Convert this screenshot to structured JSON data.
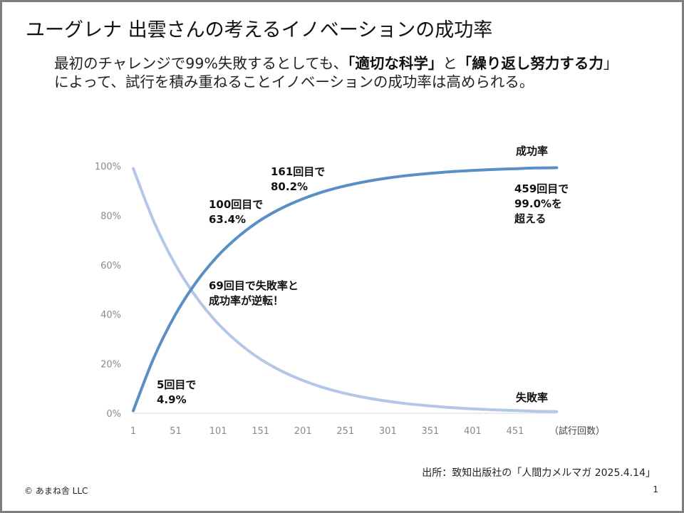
{
  "slide": {
    "title": "ユーグレナ 出雲さんの考えるイノベーションの成功率",
    "lead": {
      "part1": "最初のチャレンジで99%失敗するとしても、",
      "bold1": "「適切な科学」",
      "part2": "と",
      "bold2": "「繰り返し努力する力",
      "part3": "」によって、試行を積み重ねることイノベーションの成功率は高められる。"
    },
    "source": "出所：致知出版社の「人間力メルマガ 2025.4.14」",
    "copyright": "© あまね舎 LLC",
    "page_number": "1"
  },
  "chart_data": {
    "type": "line",
    "title": "",
    "xlabel": "（試行回数）",
    "ylabel": "",
    "xlim": [
      1,
      500
    ],
    "ylim": [
      0,
      100
    ],
    "x_ticks": [
      "1",
      "51",
      "101",
      "151",
      "201",
      "251",
      "301",
      "351",
      "401",
      "451"
    ],
    "y_ticks": [
      "0%",
      "20%",
      "40%",
      "60%",
      "80%",
      "100%"
    ],
    "grid": false,
    "x": [
      1,
      25,
      50,
      75,
      100,
      125,
      150,
      175,
      200,
      225,
      250,
      275,
      300,
      325,
      350,
      375,
      400,
      425,
      450,
      475,
      500
    ],
    "series": [
      {
        "name": "成功率",
        "color": "#5a8fc6",
        "values": [
          1.0,
          22.2,
          39.5,
          52.9,
          63.4,
          71.5,
          77.9,
          82.8,
          86.6,
          89.6,
          91.9,
          93.7,
          95.1,
          96.2,
          97.0,
          97.7,
          98.2,
          98.6,
          98.9,
          99.2,
          99.3
        ]
      },
      {
        "name": "失敗率",
        "color": "#b4c7e7",
        "values": [
          99.0,
          77.8,
          60.5,
          47.1,
          36.6,
          28.5,
          22.1,
          17.2,
          13.4,
          10.4,
          8.1,
          6.3,
          4.9,
          3.8,
          3.0,
          2.3,
          1.8,
          1.4,
          1.1,
          0.8,
          0.7
        ]
      }
    ],
    "annotations": [
      "5回目で\n4.9%",
      "100回目で\n63.4%",
      "161回目で\n80.2%",
      "69回目で失敗率と\n成功率が逆転！",
      "459回目で\n99.0%を\n超える"
    ]
  }
}
